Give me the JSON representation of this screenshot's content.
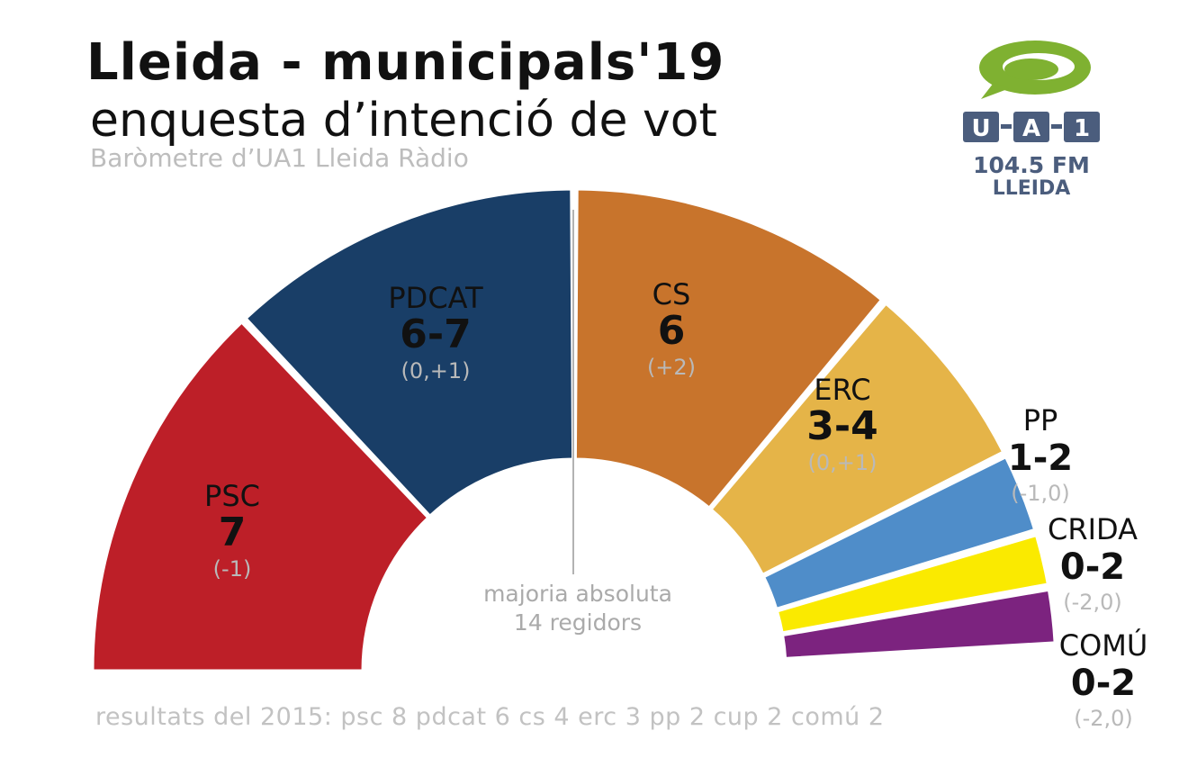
{
  "header": {
    "title": "Lleida - municipals'19",
    "subtitle": "enquesta d’intenció de vot",
    "source": "Baròmetre d’UA1 Lleida Ràdio"
  },
  "logo": {
    "letters": [
      "U",
      "A",
      "1"
    ],
    "frequency": "104.5 FM",
    "city": "LLEIDA",
    "colors": {
      "bubble": "#7fb131",
      "box": "#4b5d7d"
    }
  },
  "chart_data": {
    "type": "parliament-semicircle",
    "total_seats": 27,
    "majority_line_label": [
      "majoria absoluta",
      "14 regidors"
    ],
    "parties": [
      {
        "name": "PSC",
        "seats_label": "7",
        "change_label": "(-1)",
        "seats": 7,
        "color": "#bd1f28"
      },
      {
        "name": "PDCAT",
        "seats_label": "6-7",
        "change_label": "(0,+1)",
        "seats": 6.5,
        "color": "#193e67"
      },
      {
        "name": "CS",
        "seats_label": "6",
        "change_label": "(+2)",
        "seats": 6,
        "color": "#c8742c"
      },
      {
        "name": "ERC",
        "seats_label": "3-4",
        "change_label": "(0,+1)",
        "seats": 3.5,
        "color": "#e5b448"
      },
      {
        "name": "PP",
        "seats_label": "1-2",
        "change_label": "(-1,0)",
        "seats": 1.5,
        "color": "#4f8dc9"
      },
      {
        "name": "CRIDA",
        "seats_label": "0-2",
        "change_label": "(-2,0)",
        "seats": 1,
        "color": "#faea00"
      },
      {
        "name": "COMÚ",
        "seats_label": "0-2",
        "change_label": "(-2,0)",
        "seats": 1,
        "color": "#7c237f"
      }
    ],
    "previous_results_label": "resultats del 2015:",
    "previous_results": [
      {
        "party": "psc",
        "seats": 8
      },
      {
        "party": "pdcat",
        "seats": 6
      },
      {
        "party": "cs",
        "seats": 4
      },
      {
        "party": "erc",
        "seats": 3
      },
      {
        "party": "pp",
        "seats": 2
      },
      {
        "party": "cup",
        "seats": 2
      },
      {
        "party": "comú",
        "seats": 2
      }
    ],
    "colors": {
      "seats_text": "#111111",
      "change_text": "#b9b9b9",
      "majority_text": "#aaaaaa"
    }
  }
}
